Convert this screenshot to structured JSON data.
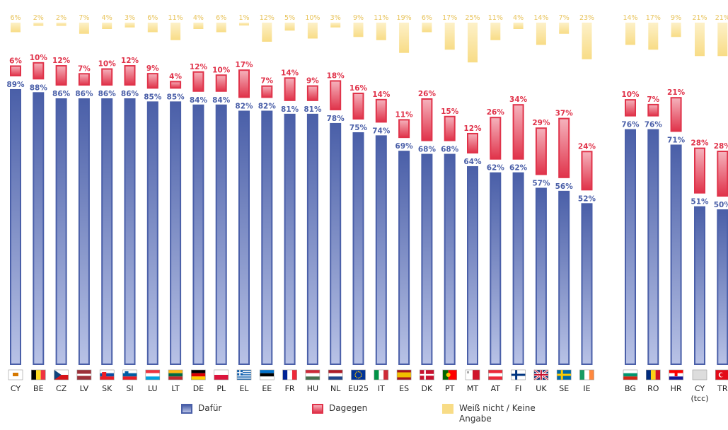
{
  "chart_data": {
    "type": "bar",
    "series": [
      {
        "name": "Dafür",
        "color": "#4a5fa8",
        "light": "#b8c2e6"
      },
      {
        "name": "Dagegen",
        "color": "#e0334a",
        "light": "#f5b3bd"
      },
      {
        "name": "Weiß nicht / Keine Angabe",
        "color": "#f8dc86",
        "light": "#fdf1c9"
      }
    ],
    "unit_suffix": "%",
    "groups": [
      {
        "name": "eu",
        "countries": [
          {
            "code": "CY",
            "flag": "cyprus",
            "values": [
              89,
              6,
              6
            ]
          },
          {
            "code": "BE",
            "flag": "belgium",
            "values": [
              88,
              10,
              2
            ]
          },
          {
            "code": "CZ",
            "flag": "czech",
            "values": [
              86,
              12,
              2
            ]
          },
          {
            "code": "LV",
            "flag": "latvia",
            "values": [
              86,
              7,
              7
            ]
          },
          {
            "code": "SK",
            "flag": "slovakia",
            "values": [
              86,
              10,
              4
            ]
          },
          {
            "code": "SI",
            "flag": "slovenia",
            "values": [
              86,
              12,
              3
            ]
          },
          {
            "code": "LU",
            "flag": "luxembourg",
            "values": [
              85,
              9,
              6
            ]
          },
          {
            "code": "LT",
            "flag": "lithuania",
            "values": [
              85,
              4,
              11
            ]
          },
          {
            "code": "DE",
            "flag": "germany",
            "values": [
              84,
              12,
              4
            ]
          },
          {
            "code": "PL",
            "flag": "poland",
            "values": [
              84,
              10,
              6
            ]
          },
          {
            "code": "EL",
            "flag": "greece",
            "values": [
              82,
              17,
              1
            ]
          },
          {
            "code": "EE",
            "flag": "estonia",
            "values": [
              82,
              7,
              12
            ]
          },
          {
            "code": "FR",
            "flag": "france",
            "values": [
              81,
              14,
              5
            ]
          },
          {
            "code": "HU",
            "flag": "hungary",
            "values": [
              81,
              9,
              10
            ]
          },
          {
            "code": "NL",
            "flag": "netherlands",
            "values": [
              78,
              18,
              3
            ]
          },
          {
            "code": "EU25",
            "flag": "eu",
            "values": [
              75,
              16,
              9
            ]
          },
          {
            "code": "IT",
            "flag": "italy",
            "values": [
              74,
              14,
              11
            ]
          },
          {
            "code": "ES",
            "flag": "spain",
            "values": [
              69,
              11,
              19
            ]
          },
          {
            "code": "DK",
            "flag": "denmark",
            "values": [
              68,
              26,
              6
            ]
          },
          {
            "code": "PT",
            "flag": "portugal",
            "values": [
              68,
              15,
              17
            ]
          },
          {
            "code": "MT",
            "flag": "malta",
            "values": [
              64,
              12,
              25
            ]
          },
          {
            "code": "AT",
            "flag": "austria",
            "values": [
              62,
              26,
              11
            ]
          },
          {
            "code": "FI",
            "flag": "finland",
            "values": [
              62,
              34,
              4
            ]
          },
          {
            "code": "UK",
            "flag": "uk",
            "values": [
              57,
              29,
              14
            ]
          },
          {
            "code": "SE",
            "flag": "sweden",
            "values": [
              56,
              37,
              7
            ]
          },
          {
            "code": "IE",
            "flag": "ireland",
            "values": [
              52,
              24,
              23
            ]
          }
        ]
      },
      {
        "name": "candidates",
        "countries": [
          {
            "code": "BG",
            "flag": "bulgaria",
            "values": [
              76,
              10,
              14
            ]
          },
          {
            "code": "RO",
            "flag": "romania",
            "values": [
              76,
              7,
              17
            ]
          },
          {
            "code": "HR",
            "flag": "croatia",
            "values": [
              71,
              21,
              9
            ]
          }
        ]
      },
      {
        "name": "others",
        "countries": [
          {
            "code": "CY\n(tcc)",
            "flag": "turkish-cyprus",
            "values": [
              51,
              28,
              21
            ]
          },
          {
            "code": "TR",
            "flag": "turkey",
            "values": [
              50,
              28,
              21
            ]
          }
        ]
      }
    ],
    "legend": {
      "placement": "bottom"
    }
  }
}
